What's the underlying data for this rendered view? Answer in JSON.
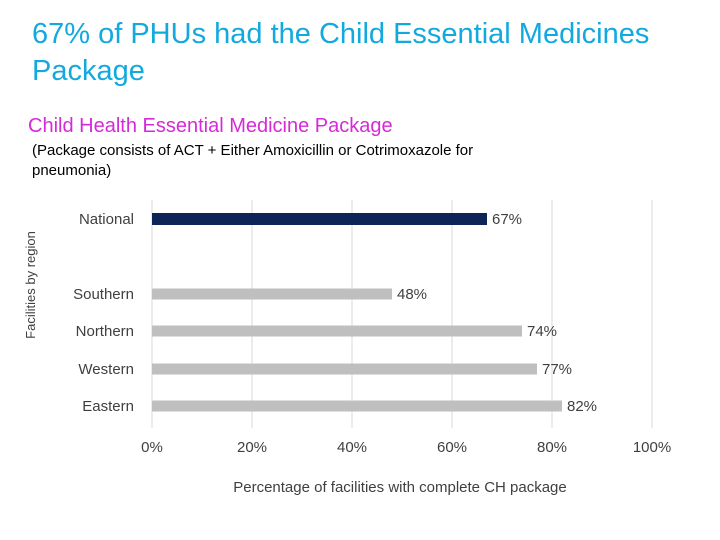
{
  "slide": {
    "title": "67% of PHUs had the Child Essential Medicines Package"
  },
  "chart_data": {
    "type": "bar",
    "orientation": "horizontal",
    "title": "Child Health Essential Medicine Package",
    "subtitle": "(Package consists of ACT + Either Amoxicillin or Cotrimoxazole for pneumonia)",
    "categories": [
      "National",
      "Southern",
      "Northern",
      "Western",
      "Eastern"
    ],
    "values": [
      67,
      48,
      74,
      77,
      82
    ],
    "data_labels": [
      "67%",
      "48%",
      "74%",
      "77%",
      "82%"
    ],
    "xlabel": "Percentage of facilities with complete CH package",
    "ylabel": "Facilities by region",
    "xlim": [
      0,
      100
    ],
    "x_ticks": [
      0,
      20,
      40,
      60,
      80,
      100
    ],
    "x_tick_labels": [
      "0%",
      "20%",
      "40%",
      "60%",
      "80%",
      "100%"
    ],
    "grid": true,
    "colors": {
      "National": "#0d2456",
      "Southern": "#bfbfbf",
      "Northern": "#bfbfbf",
      "Western": "#bfbfbf",
      "Eastern": "#bfbfbf"
    },
    "gridline_color": "#d9d9d9"
  }
}
